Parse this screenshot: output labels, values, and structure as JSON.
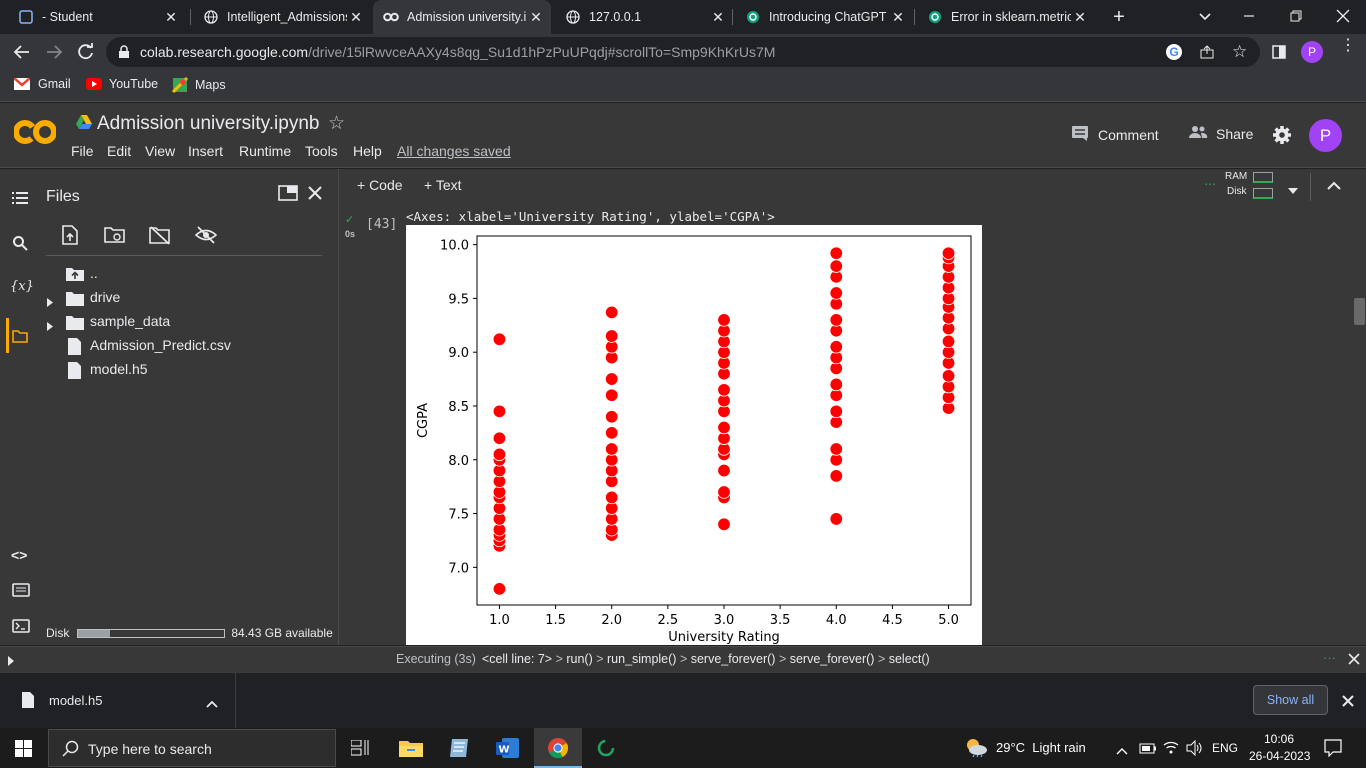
{
  "browser": {
    "tabs": [
      {
        "title": "- Student",
        "icon": "square-icon",
        "active": false
      },
      {
        "title": "Intelligent_Admissions",
        "icon": "globe-icon",
        "active": false
      },
      {
        "title": "Admission university.ip",
        "icon": "colab-icon",
        "active": true
      },
      {
        "title": "127.0.0.1",
        "icon": "globe-icon",
        "active": false
      },
      {
        "title": "Introducing ChatGPT",
        "icon": "openai-icon",
        "active": false
      },
      {
        "title": "Error in sklearn.metric",
        "icon": "openai-icon",
        "active": false
      }
    ],
    "url_host": "colab.research.google.com",
    "url_path": "/drive/15lRwvceAAXy4s8qg_Su1d1hPzPuUPqdj#scrollTo=Smp9KhKrUs7M",
    "profile_initial": "P",
    "bookmarks": [
      "Gmail",
      "YouTube",
      "Maps"
    ]
  },
  "colab": {
    "logo": "CO",
    "notebook_title": "Admission university.ipynb",
    "menu": [
      "File",
      "Edit",
      "View",
      "Insert",
      "Runtime",
      "Tools",
      "Help"
    ],
    "save_status": "All changes saved",
    "comment_label": "Comment",
    "share_label": "Share",
    "avatar_initial": "P",
    "add_code": "+ Code",
    "add_text": "+ Text",
    "ram_label": "RAM",
    "disk_label": "Disk",
    "accent": "#f9ab00",
    "avatar_color": "#a142f4"
  },
  "files_panel": {
    "title": "Files",
    "items": [
      {
        "name": "..",
        "type": "up"
      },
      {
        "name": "drive",
        "type": "folder"
      },
      {
        "name": "sample_data",
        "type": "folder"
      },
      {
        "name": "Admission_Predict.csv",
        "type": "file"
      },
      {
        "name": "model.h5",
        "type": "file"
      }
    ],
    "disk_label": "Disk",
    "disk_available": "84.43 GB available",
    "disk_used_fraction": 0.22
  },
  "cell": {
    "exec_count": "[43]",
    "exec_time": "0s",
    "output_text": "<Axes: xlabel='University Rating', ylabel='CGPA'>"
  },
  "chart_data": {
    "type": "scatter",
    "xlabel": "University Rating",
    "ylabel": "CGPA",
    "xlim": [
      0.8,
      5.2
    ],
    "ylim": [
      6.65,
      10.08
    ],
    "x_ticks": [
      "1.0",
      "1.5",
      "2.0",
      "2.5",
      "3.0",
      "3.5",
      "4.0",
      "4.5",
      "5.0"
    ],
    "y_ticks": [
      "7.0",
      "7.5",
      "8.0",
      "8.5",
      "9.0",
      "9.5",
      "10.0"
    ],
    "color": "#ff0000",
    "points": {
      "1": [
        6.8,
        7.2,
        7.25,
        7.3,
        7.35,
        7.45,
        7.55,
        7.65,
        7.7,
        7.8,
        7.9,
        8.0,
        8.05,
        8.2,
        8.45,
        9.12
      ],
      "2": [
        7.3,
        7.35,
        7.45,
        7.55,
        7.65,
        7.8,
        7.9,
        8.0,
        8.1,
        8.25,
        8.4,
        8.6,
        8.75,
        8.95,
        9.05,
        9.15,
        9.37
      ],
      "3": [
        7.4,
        7.65,
        7.7,
        7.9,
        8.05,
        8.1,
        8.2,
        8.3,
        8.45,
        8.55,
        8.65,
        8.8,
        8.9,
        9.0,
        9.1,
        9.2,
        9.3
      ],
      "4": [
        7.45,
        7.85,
        8.0,
        8.1,
        8.35,
        8.45,
        8.6,
        8.7,
        8.85,
        8.95,
        9.05,
        9.2,
        9.3,
        9.45,
        9.55,
        9.7,
        9.8,
        9.92
      ],
      "5": [
        8.48,
        8.58,
        8.68,
        8.78,
        8.9,
        9.0,
        9.1,
        9.22,
        9.32,
        9.42,
        9.5,
        9.6,
        9.7,
        9.8,
        9.88,
        9.92
      ]
    }
  },
  "status": {
    "executing": "Executing (3s)",
    "trace": [
      "<cell line: 7>",
      "run()",
      "run_simple()",
      "serve_forever()",
      "serve_forever()",
      "select()"
    ]
  },
  "download": {
    "file": "model.h5",
    "show_all": "Show all"
  },
  "taskbar": {
    "search_placeholder": "Type here to search",
    "weather": "29°C  Light rain",
    "lang": "ENG",
    "time": "10:06",
    "date": "26-04-2023"
  }
}
